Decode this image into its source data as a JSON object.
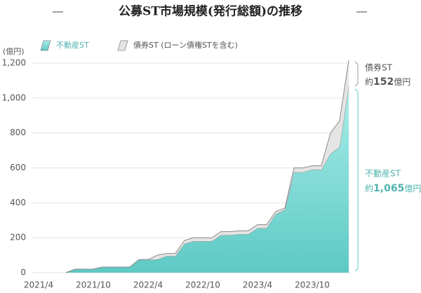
{
  "chart_data": {
    "type": "stacked-area",
    "title": "公募ST市場規模(発行総額)の推移",
    "y_unit": "(億円)",
    "categories": [
      "2021/4",
      null,
      null,
      null,
      null,
      null,
      "2021/10",
      null,
      null,
      null,
      null,
      null,
      "2022/4",
      null,
      null,
      null,
      null,
      null,
      "2022/10",
      null,
      null,
      null,
      null,
      null,
      "2023/4",
      null,
      null,
      null,
      null,
      null,
      "2023/10",
      null,
      null,
      null,
      null
    ],
    "series": [
      {
        "name": "不動産ST",
        "color": "#5ec9c4",
        "values": [
          null,
          null,
          null,
          0,
          20,
          20,
          20,
          32,
          32,
          32,
          32,
          75,
          75,
          75,
          95,
          95,
          165,
          180,
          180,
          180,
          215,
          215,
          220,
          220,
          255,
          255,
          335,
          360,
          575,
          575,
          590,
          590,
          680,
          720,
          1065
        ]
      },
      {
        "name": "債券ST (ローン債権STを含む)",
        "color": "#e4e4e4",
        "values": [
          null,
          null,
          null,
          0,
          0,
          0,
          0,
          0,
          0,
          0,
          0,
          0,
          0,
          25,
          15,
          15,
          20,
          20,
          20,
          20,
          20,
          20,
          20,
          20,
          20,
          20,
          15,
          10,
          25,
          25,
          22,
          22,
          120,
          150,
          152
        ]
      }
    ],
    "ylim": [
      0,
      1200
    ],
    "yticks": [
      0,
      200,
      400,
      600,
      800,
      {
        "value": 1000,
        "label": "1,000"
      },
      {
        "value": 1200,
        "label": "1,200"
      }
    ],
    "grid": true,
    "annotations": [
      {
        "label": "債券ST",
        "prefix": "約",
        "number": "152",
        "unit": "億円"
      },
      {
        "label": "不動産ST",
        "prefix": "約",
        "number": "1,065",
        "unit": "億円"
      }
    ]
  }
}
